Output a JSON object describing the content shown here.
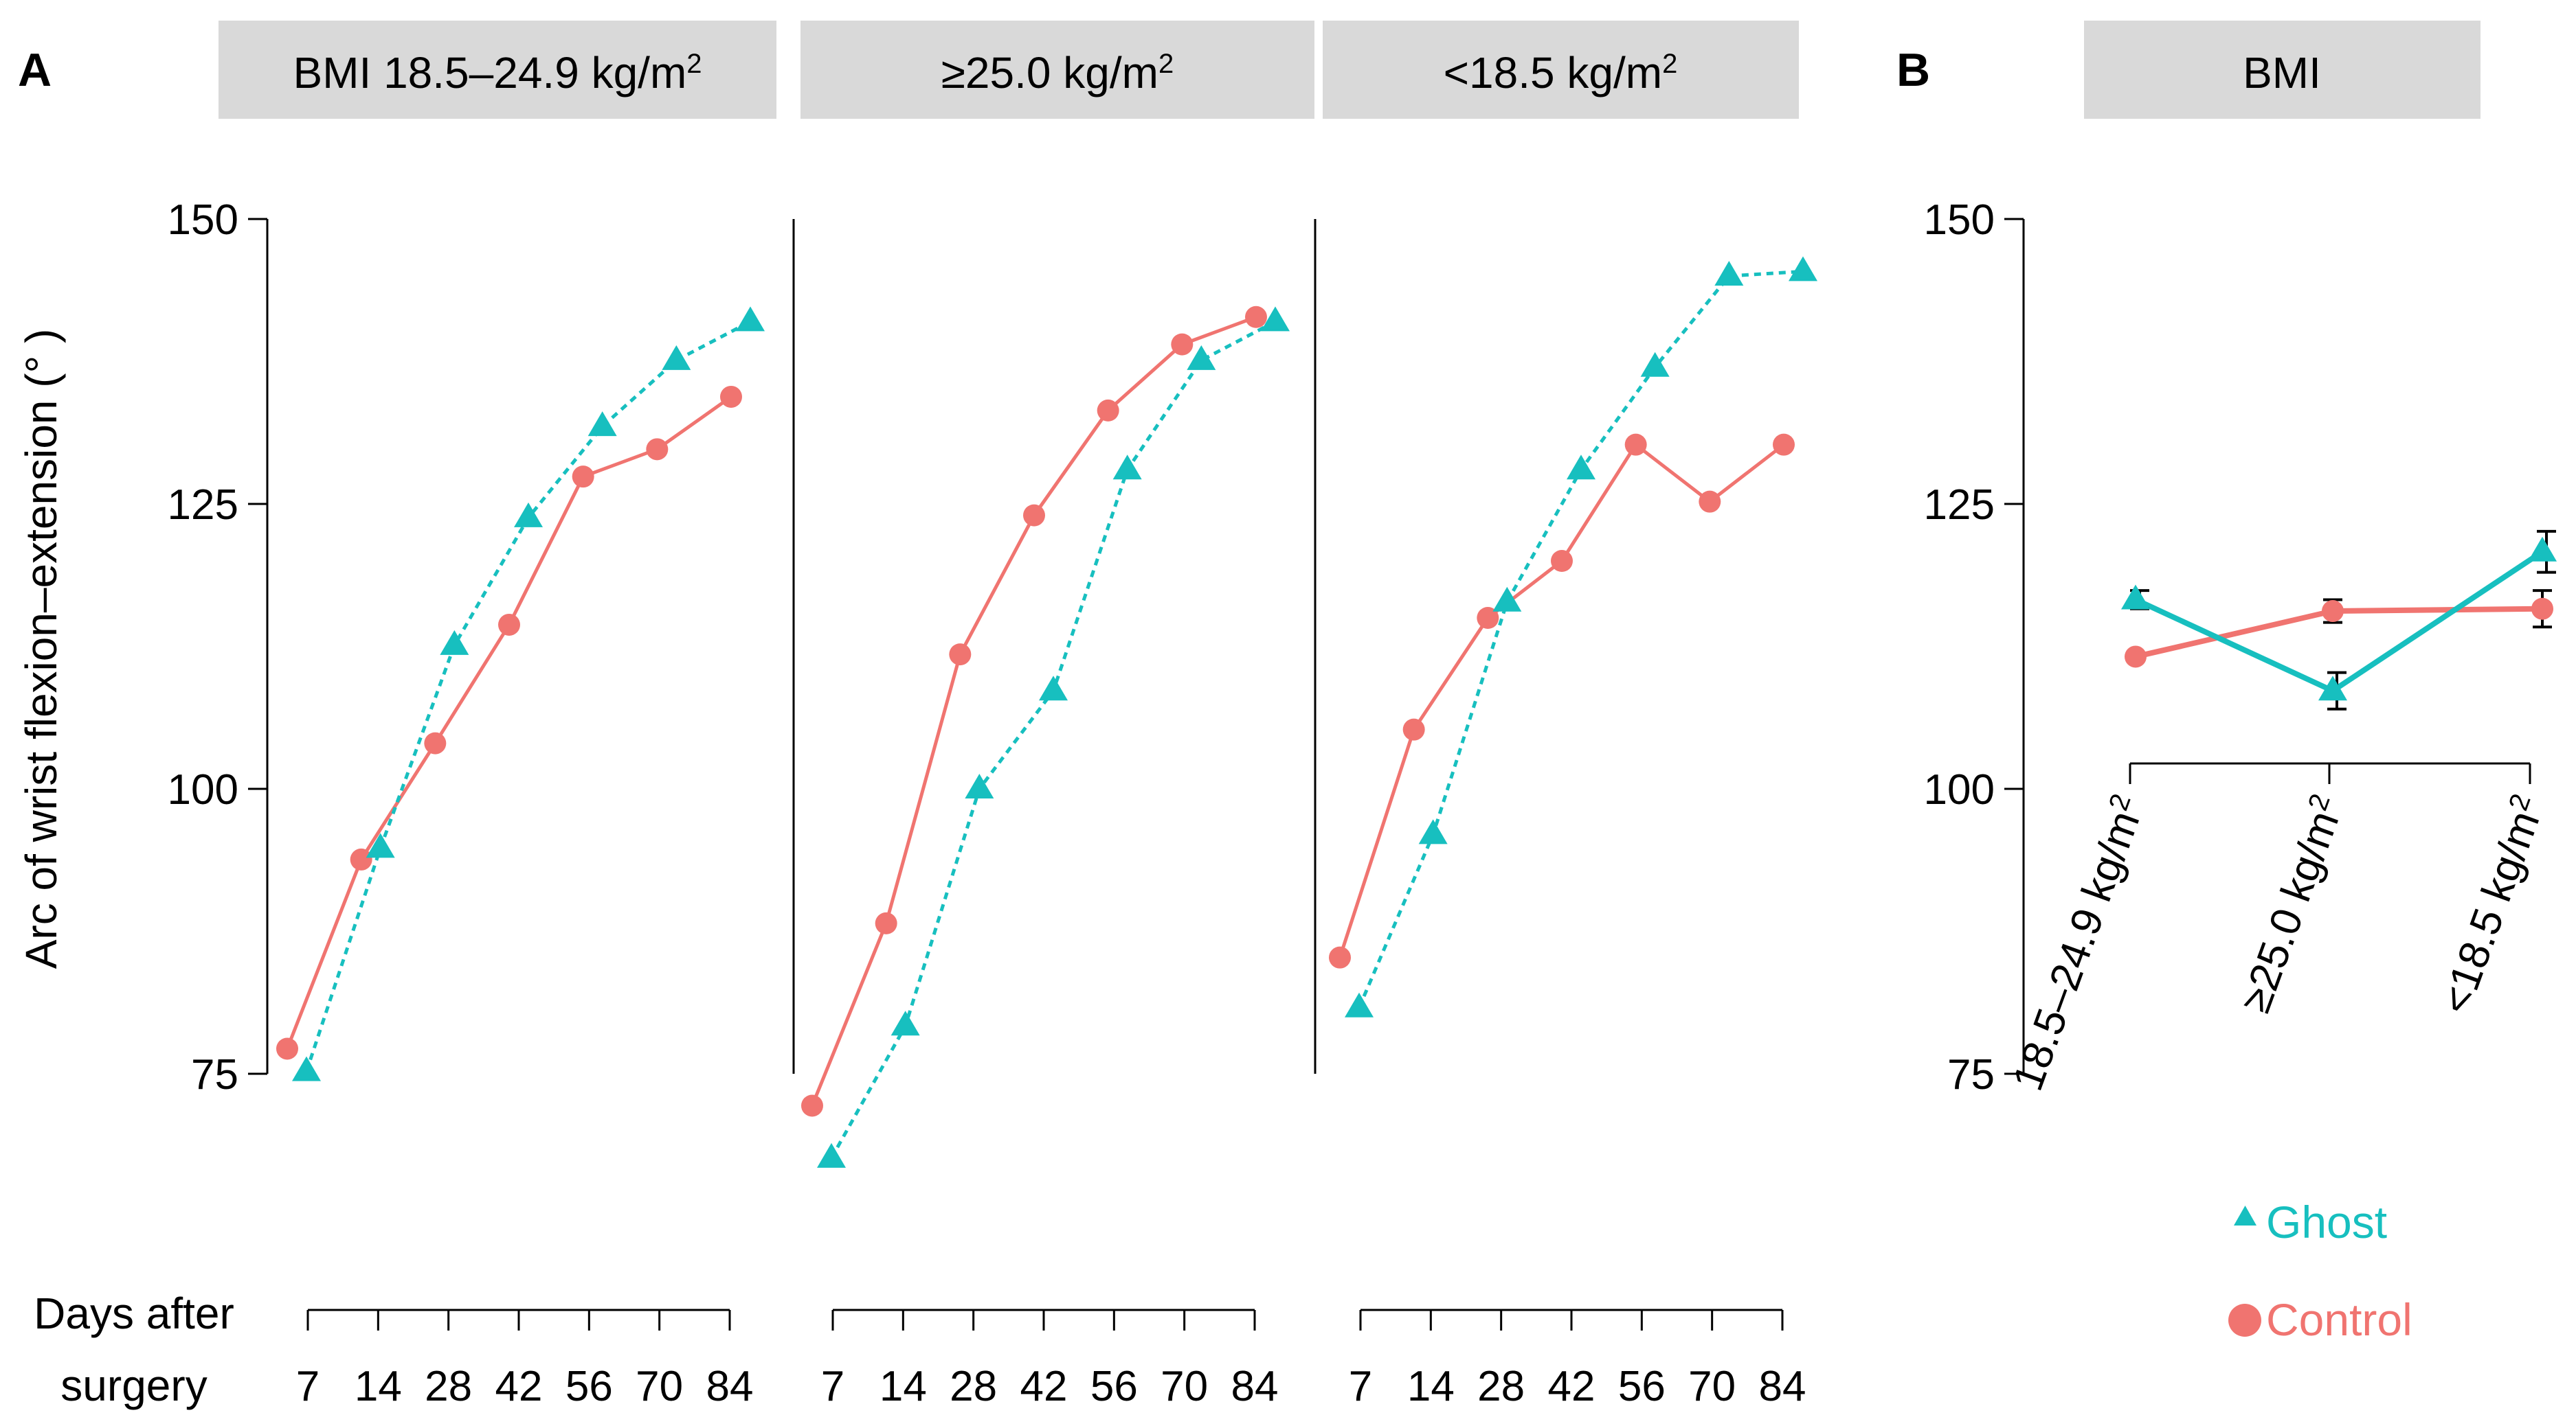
{
  "colors": {
    "ghost": "#17bfbf",
    "control": "#f07470",
    "strip": "#d9d9d9",
    "errorbar": "#000000"
  },
  "panel_a_label": "A",
  "panel_b_label": "B",
  "ylabel": "Arc of wrist flexion–extension (° )",
  "xlabel_line1": "Days after",
  "xlabel_line2": "surgery",
  "y_ticks": [
    "75",
    "100",
    "125",
    "150"
  ],
  "x_tick_labels": [
    "7",
    "14",
    "28",
    "42",
    "56",
    "70",
    "84"
  ],
  "legend": {
    "ghost": "Ghost",
    "control": "Control"
  },
  "strips": {
    "p1": {
      "text": "BMI 18.5–24.9 kg/m",
      "sup": "2"
    },
    "p2": {
      "text": "≥25.0 kg/m",
      "sup": "2"
    },
    "p3": {
      "text": "<18.5 kg/m",
      "sup": "2"
    },
    "pb": {
      "text": "BMI",
      "sup": ""
    }
  },
  "chart_data": [
    {
      "type": "line",
      "title": "BMI 18.5–24.9 kg/m2",
      "x": [
        7,
        14,
        28,
        42,
        56,
        70,
        84
      ],
      "xlabel": "Days after surgery",
      "ylabel": "Arc of wrist flexion–extension (°)",
      "ylim": [
        75,
        150
      ],
      "series": [
        {
          "name": "Ghost",
          "values": [
            75.2,
            94.8,
            112.6,
            123.8,
            131.8,
            137.6,
            141.0
          ]
        },
        {
          "name": "Control",
          "values": [
            77.2,
            93.8,
            104.0,
            114.4,
            127.4,
            129.8,
            134.4
          ]
        }
      ]
    },
    {
      "type": "line",
      "title": "≥25.0 kg/m2",
      "x": [
        7,
        14,
        28,
        42,
        56,
        70,
        84
      ],
      "xlabel": "Days after surgery",
      "ylim": [
        75,
        150
      ],
      "series": [
        {
          "name": "Ghost",
          "values": [
            67.6,
            79.2,
            100.0,
            108.6,
            128.0,
            137.6,
            141.0
          ]
        },
        {
          "name": "Control",
          "values": [
            72.2,
            88.2,
            111.8,
            124.0,
            133.2,
            139.0,
            141.4
          ]
        }
      ]
    },
    {
      "type": "line",
      "title": "<18.5 kg/m2",
      "x": [
        7,
        14,
        28,
        42,
        56,
        70,
        84
      ],
      "xlabel": "Days after surgery",
      "ylim": [
        75,
        150
      ],
      "series": [
        {
          "name": "Ghost",
          "values": [
            80.8,
            96.0,
            116.4,
            128.0,
            137.0,
            145.0,
            145.4
          ]
        },
        {
          "name": "Control",
          "values": [
            85.2,
            105.2,
            115.0,
            120.0,
            130.2,
            125.2,
            130.2
          ]
        }
      ]
    },
    {
      "type": "line",
      "title": "BMI",
      "categories": [
        "18.5–24.9 kg/m2",
        "≥25.0 kg/m2",
        "<18.5 kg/m2"
      ],
      "category_labels": [
        {
          "text": "18.5–24.9 kg/m",
          "sup": "2"
        },
        {
          "text": "≥25.0 kg/m",
          "sup": "2"
        },
        {
          "text": "<18.5 kg/m",
          "sup": "2"
        }
      ],
      "ylim": [
        75,
        150
      ],
      "series": [
        {
          "name": "Ghost",
          "values": [
            116.6,
            108.6,
            120.8
          ],
          "errors": [
            0.8,
            1.6,
            1.8
          ]
        },
        {
          "name": "Control",
          "values": [
            111.6,
            115.6,
            115.8
          ],
          "errors": [
            0.3,
            1.0,
            1.6
          ]
        }
      ]
    }
  ]
}
